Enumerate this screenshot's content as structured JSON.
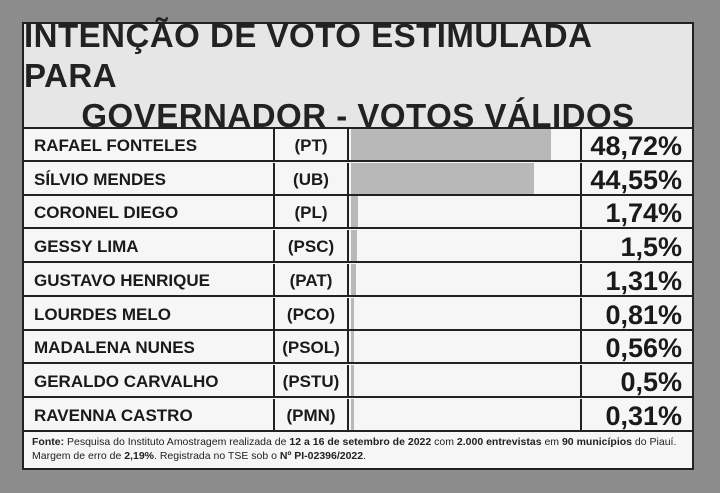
{
  "title": {
    "line1": "INTENÇÃO DE VOTO ESTIMULADA PARA",
    "line2": "GOVERNADOR - VOTOS VÁLIDOS"
  },
  "chart_data": {
    "type": "bar",
    "unit": "%",
    "categories": [
      "RAFAEL FONTELES",
      "SÍLVIO MENDES",
      "CORONEL DIEGO",
      "GESSY LIMA",
      "GUSTAVO HENRIQUE",
      "LOURDES MELO",
      "MADALENA NUNES",
      "GERALDO CARVALHO",
      "RAVENNA CASTRO"
    ],
    "parties": [
      "(PT)",
      "(UB)",
      "(PL)",
      "(PSC)",
      "(PAT)",
      "(PCO)",
      "(PSOL)",
      "(PSTU)",
      "(PMN)"
    ],
    "values": [
      48.72,
      44.55,
      1.74,
      1.5,
      1.31,
      0.81,
      0.56,
      0.5,
      0.31
    ],
    "value_labels": [
      "48,72%",
      "44,55%",
      "1,74%",
      "1,5%",
      "1,31%",
      "0,81%",
      "0,56%",
      "0,5%",
      "0,31%"
    ],
    "bar_color": "#b8b8b8"
  },
  "footer": {
    "label": "Fonte:",
    "t1": " Pesquisa do Instituto Amostragem realizada de ",
    "b1": "12 a 16 de setembro de 2022",
    "t2": " com ",
    "b2": "2.000 entrevistas",
    "t3": " em ",
    "b3": "90 municípios",
    "t4": " do Piauí. Margem de erro de ",
    "b4": "2,19%",
    "t5": ". Registrada no TSE sob o ",
    "b5": "Nº PI-02396/2022",
    "t6": "."
  }
}
